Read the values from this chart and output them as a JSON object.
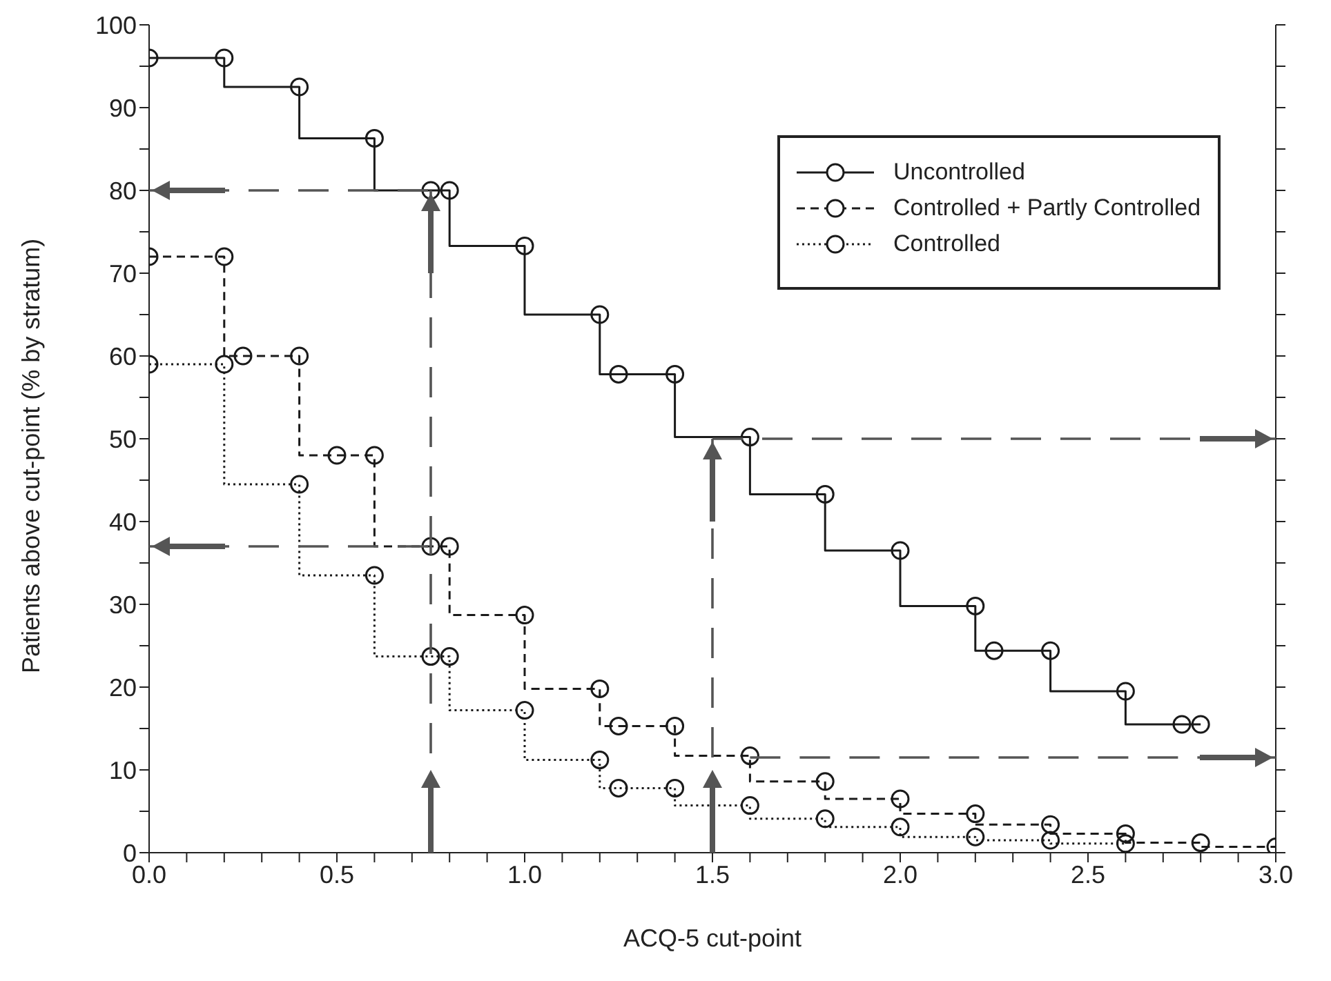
{
  "chart_data": {
    "type": "step",
    "xlabel": "ACQ-5 cut-point",
    "ylabel": "Patients above cut-point (% by stratum)",
    "xlim": [
      0,
      3
    ],
    "ylim": [
      0,
      100
    ],
    "xticks": [
      {
        "value": 0,
        "label": "0.0"
      },
      {
        "value": 0.1,
        "label": null
      },
      {
        "value": 0.2,
        "label": null
      },
      {
        "value": 0.3,
        "label": null
      },
      {
        "value": 0.4,
        "label": null
      },
      {
        "value": 0.5,
        "label": "0.5"
      },
      {
        "value": 0.6,
        "label": null
      },
      {
        "value": 0.7,
        "label": null
      },
      {
        "value": 0.8,
        "label": null
      },
      {
        "value": 0.9,
        "label": null
      },
      {
        "value": 1,
        "label": "1.0"
      },
      {
        "value": 1.1,
        "label": null
      },
      {
        "value": 1.2,
        "label": null
      },
      {
        "value": 1.3,
        "label": null
      },
      {
        "value": 1.4,
        "label": null
      },
      {
        "value": 1.5,
        "label": "1.5"
      },
      {
        "value": 1.6,
        "label": null
      },
      {
        "value": 1.7,
        "label": null
      },
      {
        "value": 1.8,
        "label": null
      },
      {
        "value": 1.9,
        "label": null
      },
      {
        "value": 2,
        "label": "2.0"
      },
      {
        "value": 2.1,
        "label": null
      },
      {
        "value": 2.2,
        "label": null
      },
      {
        "value": 2.3,
        "label": null
      },
      {
        "value": 2.4,
        "label": null
      },
      {
        "value": 2.5,
        "label": "2.5"
      },
      {
        "value": 2.6,
        "label": null
      },
      {
        "value": 2.7,
        "label": null
      },
      {
        "value": 2.8,
        "label": null
      },
      {
        "value": 2.9,
        "label": null
      },
      {
        "value": 3,
        "label": "3.0"
      }
    ],
    "yticks": [
      0,
      {
        "value": 5,
        "label": null
      },
      10,
      {
        "value": 15,
        "label": null
      },
      20,
      {
        "value": 25,
        "label": null
      },
      30,
      {
        "value": 35,
        "label": null
      },
      40,
      {
        "value": 45,
        "label": null
      },
      50,
      {
        "value": 55,
        "label": null
      },
      60,
      {
        "value": 65,
        "label": null
      },
      70,
      {
        "value": 75,
        "label": null
      },
      80,
      {
        "value": 85,
        "label": null
      },
      90,
      {
        "value": 95,
        "label": null
      },
      100
    ],
    "grid": false,
    "legend": "top right",
    "marker": "circle",
    "series": [
      {
        "name": "Uncontrolled",
        "color": "#1a1a1a",
        "line_style": "solid",
        "x": [
          0,
          0.2,
          0.4,
          0.6,
          0.75,
          0.8,
          1.0,
          1.2,
          1.25,
          1.4,
          1.6,
          1.8,
          2.0,
          2.2,
          2.25,
          2.4,
          2.6,
          2.75,
          2.8
        ],
        "values": [
          96,
          96,
          92.5,
          86.3,
          80,
          80,
          73.3,
          65,
          57.8,
          57.8,
          50.2,
          43.3,
          36.5,
          29.8,
          24.4,
          24.4,
          19.5,
          15.5,
          15.5
        ]
      },
      {
        "name": "Controlled + Partly Controlled",
        "color": "#1a1a1a",
        "line_style": "dashed",
        "x": [
          0,
          0.2,
          0.25,
          0.4,
          0.5,
          0.6,
          0.75,
          0.8,
          1.0,
          1.2,
          1.25,
          1.4,
          1.6,
          1.8,
          2.0,
          2.2,
          2.4,
          2.6,
          2.8,
          3.0
        ],
        "values": [
          72,
          72,
          60,
          60,
          48,
          48,
          37,
          37,
          28.7,
          19.8,
          15.3,
          15.3,
          11.7,
          8.6,
          6.5,
          4.7,
          3.4,
          2.3,
          1.2,
          0.7
        ]
      },
      {
        "name": "Controlled",
        "color": "#1a1a1a",
        "line_style": "dotted",
        "x": [
          0,
          0.2,
          0.4,
          0.6,
          0.75,
          0.8,
          1.0,
          1.2,
          1.25,
          1.4,
          1.6,
          1.8,
          2.0,
          2.2,
          2.4,
          2.6
        ],
        "values": [
          59,
          59,
          44.5,
          33.5,
          23.7,
          23.7,
          17.2,
          11.2,
          7.8,
          7.8,
          5.7,
          4.1,
          3.1,
          1.9,
          1.5,
          1.1
        ]
      }
    ]
  }
}
